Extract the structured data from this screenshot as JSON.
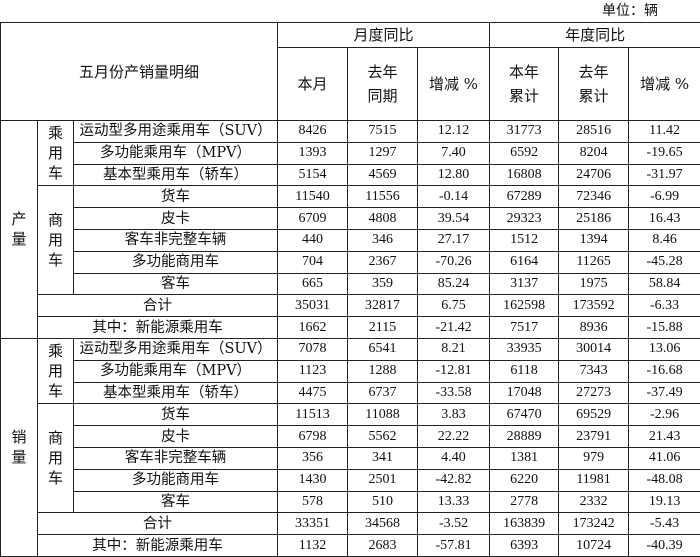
{
  "unit_label": "单位：辆",
  "header": {
    "title": "五月份产销量明细",
    "monthly": "月度同比",
    "yearly": "年度同比",
    "cols": [
      "本月",
      "去年同期",
      "增减 %",
      "本年累计",
      "去年累计",
      "增减 %"
    ]
  },
  "sections": [
    {
      "label": "产量",
      "groups": [
        {
          "label": "乘用车",
          "rows": [
            {
              "name": "运动型多用途乘用车（SUV）",
              "values": [
                "8426",
                "7515",
                "12.12",
                "31773",
                "28516",
                "11.42"
              ]
            },
            {
              "name": "多功能乘用车（MPV）",
              "values": [
                "1393",
                "1297",
                "7.40",
                "6592",
                "8204",
                "-19.65"
              ]
            },
            {
              "name": "基本型乘用车（轿车）",
              "values": [
                "5154",
                "4569",
                "12.80",
                "16808",
                "24706",
                "-31.97"
              ]
            }
          ]
        },
        {
          "label": "商用车",
          "rows": [
            {
              "name": "货车",
              "values": [
                "11540",
                "11556",
                "-0.14",
                "67289",
                "72346",
                "-6.99"
              ]
            },
            {
              "name": "皮卡",
              "values": [
                "6709",
                "4808",
                "39.54",
                "29323",
                "25186",
                "16.43"
              ]
            },
            {
              "name": "客车非完整车辆",
              "values": [
                "440",
                "346",
                "27.17",
                "1512",
                "1394",
                "8.46"
              ]
            },
            {
              "name": "多功能商用车",
              "values": [
                "704",
                "2367",
                "-70.26",
                "6164",
                "11265",
                "-45.28"
              ]
            },
            {
              "name": "客车",
              "values": [
                "665",
                "359",
                "85.24",
                "3137",
                "1975",
                "58.84"
              ]
            }
          ]
        }
      ],
      "totals": [
        {
          "name": "合计",
          "values": [
            "35031",
            "32817",
            "6.75",
            "162598",
            "173592",
            "-6.33"
          ]
        },
        {
          "name": "其中：新能源乘用车",
          "values": [
            "1662",
            "2115",
            "-21.42",
            "7517",
            "8936",
            "-15.88"
          ]
        }
      ]
    },
    {
      "label": "销量",
      "groups": [
        {
          "label": "乘用车",
          "rows": [
            {
              "name": "运动型多用途乘用车（SUV）",
              "values": [
                "7078",
                "6541",
                "8.21",
                "33935",
                "30014",
                "13.06"
              ]
            },
            {
              "name": "多功能乘用车（MPV）",
              "values": [
                "1123",
                "1288",
                "-12.81",
                "6118",
                "7343",
                "-16.68"
              ]
            },
            {
              "name": "基本型乘用车（轿车）",
              "values": [
                "4475",
                "6737",
                "-33.58",
                "17048",
                "27273",
                "-37.49"
              ]
            }
          ]
        },
        {
          "label": "商用车",
          "rows": [
            {
              "name": "货车",
              "values": [
                "11513",
                "11088",
                "3.83",
                "67470",
                "69529",
                "-2.96"
              ]
            },
            {
              "name": "皮卡",
              "values": [
                "6798",
                "5562",
                "22.22",
                "28889",
                "23791",
                "21.43"
              ]
            },
            {
              "name": "客车非完整车辆",
              "values": [
                "356",
                "341",
                "4.40",
                "1381",
                "979",
                "41.06"
              ]
            },
            {
              "name": "多功能商用车",
              "values": [
                "1430",
                "2501",
                "-42.82",
                "6220",
                "11981",
                "-48.08"
              ]
            },
            {
              "name": "客车",
              "values": [
                "578",
                "510",
                "13.33",
                "2778",
                "2332",
                "19.13"
              ]
            }
          ]
        }
      ],
      "totals": [
        {
          "name": "合计",
          "values": [
            "33351",
            "34568",
            "-3.52",
            "163839",
            "173242",
            "-5.43"
          ]
        },
        {
          "name": "其中：新能源乘用车",
          "values": [
            "1132",
            "2683",
            "-57.81",
            "6393",
            "10724",
            "-40.39"
          ]
        }
      ]
    }
  ]
}
